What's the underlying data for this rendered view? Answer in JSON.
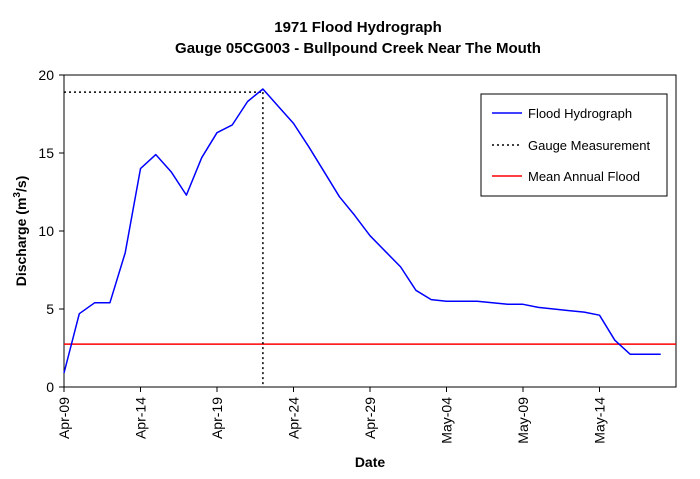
{
  "chart_data": {
    "type": "line",
    "title": "1971 Flood Hydrograph",
    "subtitle": "Gauge 05CG003 - Bullpound Creek Near The Mouth",
    "xlabel": "Date",
    "ylabel_main": "Discharge (m",
    "ylabel_sup": "3",
    "ylabel_tail": "/s)",
    "ylim": [
      0,
      20
    ],
    "yticks": [
      0,
      5,
      10,
      15,
      20
    ],
    "xlim": [
      "Apr-09",
      "May-19"
    ],
    "xticks": [
      "Apr-09",
      "Apr-14",
      "Apr-19",
      "Apr-24",
      "Apr-29",
      "May-04",
      "May-09",
      "May-14"
    ],
    "grid": false,
    "legend_position": "top-right",
    "series": [
      {
        "name": "Flood Hydrograph",
        "style": "solid",
        "color": "#0000ff",
        "x": [
          "Apr-09",
          "Apr-10",
          "Apr-11",
          "Apr-12",
          "Apr-13",
          "Apr-14",
          "Apr-15",
          "Apr-16",
          "Apr-17",
          "Apr-18",
          "Apr-19",
          "Apr-20",
          "Apr-21",
          "Apr-22",
          "Apr-23",
          "Apr-24",
          "Apr-25",
          "Apr-26",
          "Apr-27",
          "Apr-28",
          "Apr-29",
          "Apr-30",
          "May-01",
          "May-02",
          "May-03",
          "May-04",
          "May-05",
          "May-06",
          "May-07",
          "May-08",
          "May-09",
          "May-10",
          "May-11",
          "May-12",
          "May-13",
          "May-14",
          "May-15",
          "May-16",
          "May-17",
          "May-18"
        ],
        "y": [
          0.9,
          4.7,
          5.4,
          5.4,
          8.6,
          14.0,
          14.9,
          13.8,
          12.3,
          14.7,
          16.3,
          16.8,
          18.3,
          19.1,
          18.0,
          16.9,
          15.4,
          13.8,
          12.2,
          11.0,
          9.7,
          8.7,
          7.7,
          6.2,
          5.6,
          5.5,
          5.5,
          5.5,
          5.4,
          5.3,
          5.3,
          5.1,
          5.0,
          4.9,
          4.8,
          4.6,
          3.0,
          2.1,
          2.1,
          2.1
        ]
      },
      {
        "name": "Gauge Measurement",
        "style": "dotted",
        "color": "#000000",
        "x": "Apr-22",
        "y": 18.9
      },
      {
        "name": "Mean Annual Flood",
        "style": "solid",
        "color": "#ff0000",
        "y": 2.75
      }
    ]
  }
}
